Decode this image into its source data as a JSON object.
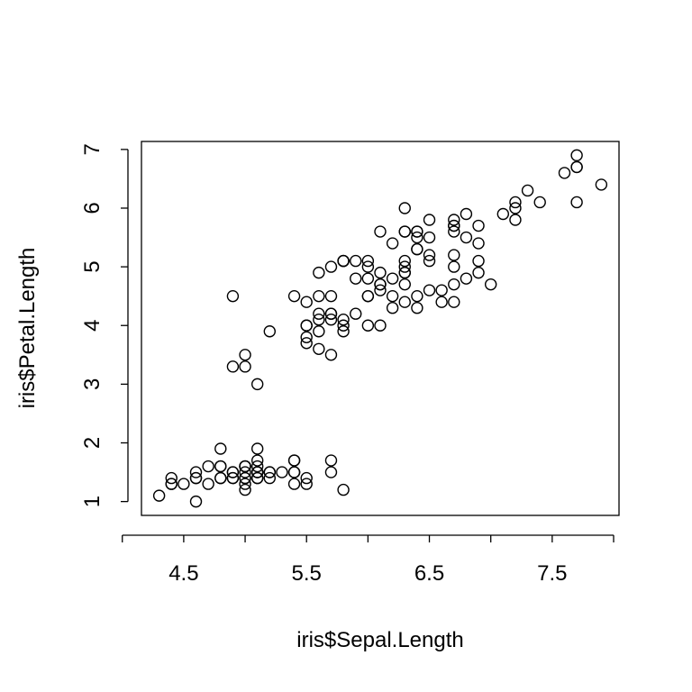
{
  "chart_data": {
    "type": "scatter",
    "title": "",
    "xlabel": "iris$Sepal.Length",
    "ylabel": "iris$Petal.Length",
    "xlim": [
      4.156,
      8.044
    ],
    "ylim": [
      0.764,
      7.136
    ],
    "x_ticks": [
      4,
      4.5,
      5,
      5.5,
      6,
      6.5,
      7,
      7.5,
      8
    ],
    "x_tick_labels": [
      "",
      "4.5",
      "",
      "5.5",
      "",
      "6.5",
      "",
      "7.5",
      ""
    ],
    "y_ticks": [
      1,
      2,
      3,
      4,
      5,
      6,
      7
    ],
    "y_tick_labels": [
      "1",
      "2",
      "3",
      "4",
      "5",
      "6",
      "7"
    ],
    "grid": false,
    "legend": "none",
    "marker": "open-circle",
    "colors": {
      "points": "#000000",
      "axes": "#000000",
      "background": "#ffffff"
    },
    "x": [
      5.1,
      4.9,
      4.7,
      4.6,
      5.0,
      5.4,
      4.6,
      5.0,
      4.4,
      4.9,
      5.4,
      4.8,
      4.8,
      4.3,
      5.8,
      5.7,
      5.4,
      5.1,
      5.7,
      5.1,
      5.4,
      5.1,
      4.6,
      5.1,
      4.8,
      5.0,
      5.0,
      5.2,
      5.2,
      4.7,
      4.8,
      5.4,
      5.2,
      5.5,
      4.9,
      5.0,
      5.5,
      4.9,
      4.4,
      5.1,
      5.0,
      4.5,
      4.4,
      5.0,
      5.1,
      4.8,
      5.1,
      4.6,
      5.3,
      5.0,
      7.0,
      6.4,
      6.9,
      5.5,
      6.5,
      5.7,
      6.3,
      4.9,
      6.6,
      5.2,
      5.0,
      5.9,
      6.0,
      6.1,
      5.6,
      6.7,
      5.6,
      5.8,
      6.2,
      5.6,
      5.9,
      6.1,
      6.3,
      6.1,
      6.4,
      6.6,
      6.8,
      6.7,
      6.0,
      5.7,
      5.5,
      5.5,
      5.8,
      6.0,
      5.4,
      6.0,
      6.7,
      6.3,
      5.6,
      5.5,
      5.5,
      6.1,
      5.8,
      5.0,
      5.6,
      5.7,
      5.7,
      6.2,
      5.1,
      5.7,
      6.3,
      5.8,
      7.1,
      6.3,
      6.5,
      7.6,
      4.9,
      7.3,
      6.7,
      7.2,
      6.5,
      6.4,
      6.8,
      5.7,
      5.8,
      6.4,
      6.5,
      7.7,
      7.7,
      6.0,
      6.9,
      5.6,
      7.7,
      6.3,
      6.7,
      7.2,
      6.2,
      6.1,
      6.4,
      7.2,
      7.4,
      7.9,
      6.4,
      6.3,
      6.1,
      7.7,
      6.3,
      6.4,
      6.0,
      6.9,
      6.7,
      6.9,
      5.8,
      6.8,
      6.7,
      6.7,
      6.3,
      6.5,
      6.2,
      5.9
    ],
    "y": [
      1.4,
      1.4,
      1.3,
      1.5,
      1.4,
      1.7,
      1.4,
      1.5,
      1.4,
      1.5,
      1.5,
      1.6,
      1.4,
      1.1,
      1.2,
      1.5,
      1.3,
      1.4,
      1.7,
      1.5,
      1.7,
      1.5,
      1.0,
      1.7,
      1.9,
      1.6,
      1.6,
      1.5,
      1.4,
      1.6,
      1.6,
      1.5,
      1.5,
      1.4,
      1.5,
      1.2,
      1.3,
      1.4,
      1.3,
      1.5,
      1.3,
      1.3,
      1.3,
      1.6,
      1.9,
      1.4,
      1.6,
      1.4,
      1.5,
      1.4,
      4.7,
      4.5,
      4.9,
      4.0,
      4.6,
      4.5,
      4.7,
      3.3,
      4.6,
      3.9,
      3.5,
      4.2,
      4.0,
      4.7,
      3.6,
      4.4,
      4.5,
      4.1,
      4.5,
      3.9,
      4.8,
      4.0,
      4.9,
      4.7,
      4.3,
      4.4,
      4.8,
      5.0,
      4.5,
      3.5,
      3.8,
      3.7,
      3.9,
      5.1,
      4.5,
      4.5,
      4.7,
      4.4,
      4.1,
      4.0,
      4.4,
      4.6,
      4.0,
      3.3,
      4.2,
      4.2,
      4.2,
      4.3,
      3.0,
      4.1,
      6.0,
      5.1,
      5.9,
      5.6,
      5.8,
      6.6,
      4.5,
      6.3,
      5.8,
      6.1,
      5.1,
      5.3,
      5.5,
      5.0,
      5.1,
      5.3,
      5.5,
      6.7,
      6.9,
      5.0,
      5.7,
      4.9,
      6.7,
      4.9,
      5.7,
      6.0,
      4.8,
      4.9,
      5.6,
      5.8,
      6.1,
      6.4,
      5.6,
      5.1,
      5.6,
      6.1,
      5.6,
      5.5,
      4.8,
      5.4,
      5.6,
      5.1,
      5.1,
      5.9,
      5.7,
      5.2,
      5.0,
      5.2,
      5.4,
      5.1
    ]
  }
}
